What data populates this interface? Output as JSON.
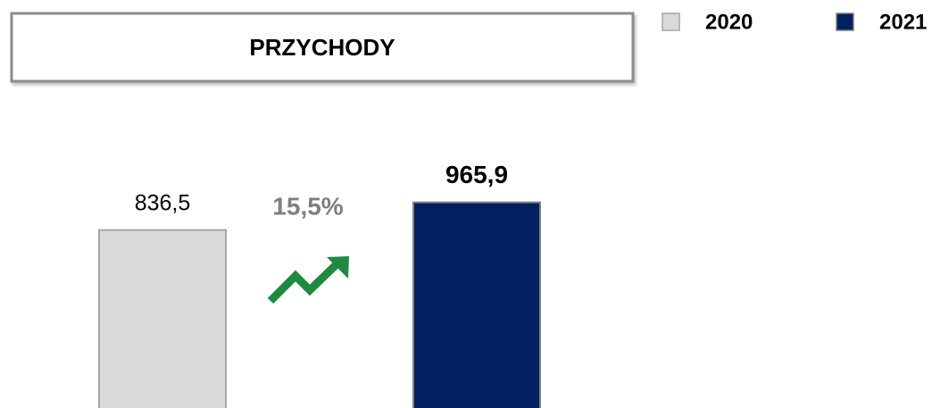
{
  "chart_data": {
    "type": "bar",
    "title": "PRZYCHODY",
    "annotation": "15,5%",
    "series": [
      {
        "name": "2020",
        "color": "#d9d9d9",
        "values": [
          836.5
        ],
        "value_labels": [
          "836,5"
        ]
      },
      {
        "name": "2021",
        "color": "#002060",
        "values": [
          965.9
        ],
        "value_labels": [
          "965,9"
        ]
      }
    ],
    "ylim": [
      0,
      1900
    ]
  }
}
